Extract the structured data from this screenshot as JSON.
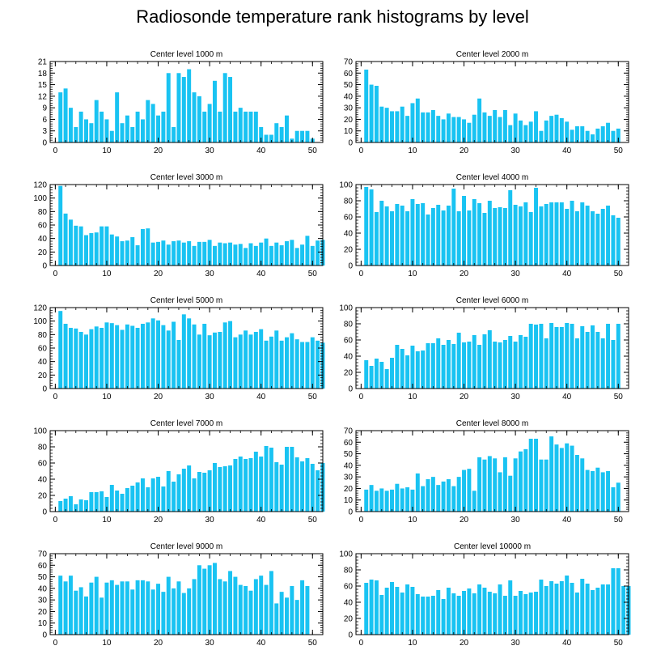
{
  "title": "Radiosonde temperature rank histograms by level",
  "colors": {
    "bar": "#19C3F2",
    "axis": "#000000",
    "background": "#ffffff"
  },
  "chart_data": [
    {
      "type": "bar",
      "title": "Center level 1000 m",
      "xlim": [
        -1,
        52
      ],
      "ylim": [
        0,
        21
      ],
      "xticks": [
        0,
        10,
        20,
        30,
        40,
        50
      ],
      "yticks": [
        0,
        3,
        6,
        9,
        12,
        15,
        18,
        21
      ],
      "values": [
        13,
        14,
        9,
        4,
        8,
        6,
        5,
        11,
        8,
        6,
        3,
        13,
        5,
        7,
        4,
        8,
        6,
        11,
        10,
        7,
        8,
        18,
        4,
        18,
        17,
        19,
        13,
        12,
        8,
        10,
        16,
        8,
        18,
        17,
        8,
        9,
        8,
        8,
        8,
        4,
        2,
        2,
        5,
        4,
        7,
        1,
        3,
        3,
        3,
        1
      ]
    },
    {
      "type": "bar",
      "title": "Center level 2000 m",
      "xlim": [
        -1,
        52
      ],
      "ylim": [
        0,
        70
      ],
      "xticks": [
        0,
        10,
        20,
        30,
        40,
        50
      ],
      "yticks": [
        0,
        10,
        20,
        30,
        40,
        50,
        60,
        70
      ],
      "values": [
        63,
        50,
        49,
        31,
        30,
        27,
        27,
        31,
        23,
        34,
        38,
        26,
        26,
        28,
        23,
        20,
        25,
        22,
        22,
        20,
        17,
        24,
        38,
        26,
        23,
        28,
        22,
        28,
        15,
        25,
        19,
        15,
        18,
        27,
        10,
        19,
        23,
        24,
        21,
        18,
        11,
        14,
        14,
        10,
        7,
        12,
        14,
        17,
        10,
        12
      ]
    },
    {
      "type": "bar",
      "title": "Center level 3000 m",
      "xlim": [
        -1,
        52
      ],
      "ylim": [
        0,
        120
      ],
      "xticks": [
        0,
        10,
        20,
        30,
        40,
        50
      ],
      "yticks": [
        0,
        20,
        40,
        60,
        80,
        100,
        120
      ],
      "values": [
        118,
        77,
        68,
        59,
        58,
        45,
        48,
        49,
        58,
        58,
        46,
        43,
        36,
        37,
        42,
        30,
        54,
        55,
        34,
        35,
        37,
        31,
        36,
        37,
        34,
        36,
        29,
        35,
        35,
        38,
        29,
        34,
        33,
        34,
        31,
        32,
        26,
        33,
        29,
        34,
        40,
        29,
        34,
        30,
        36,
        38,
        26,
        31,
        44,
        29,
        37,
        38
      ]
    },
    {
      "type": "bar",
      "title": "Center level 4000 m",
      "xlim": [
        -1,
        52
      ],
      "ylim": [
        0,
        100
      ],
      "xticks": [
        0,
        10,
        20,
        30,
        40,
        50
      ],
      "yticks": [
        0,
        20,
        40,
        60,
        80,
        100
      ],
      "values": [
        97,
        94,
        66,
        80,
        73,
        67,
        76,
        74,
        67,
        82,
        76,
        77,
        63,
        71,
        75,
        68,
        74,
        95,
        67,
        86,
        68,
        82,
        77,
        65,
        80,
        71,
        72,
        71,
        93,
        75,
        73,
        78,
        66,
        96,
        73,
        76,
        78,
        78,
        78,
        70,
        80,
        67,
        78,
        74,
        67,
        64,
        70,
        74,
        62,
        59
      ]
    },
    {
      "type": "bar",
      "title": "Center level 5000 m",
      "xlim": [
        -1,
        52
      ],
      "ylim": [
        0,
        120
      ],
      "xticks": [
        0,
        10,
        20,
        30,
        40,
        50
      ],
      "yticks": [
        0,
        20,
        40,
        60,
        80,
        100,
        120
      ],
      "values": [
        115,
        96,
        90,
        89,
        84,
        80,
        88,
        92,
        90,
        98,
        97,
        94,
        87,
        95,
        93,
        90,
        96,
        98,
        104,
        101,
        94,
        86,
        99,
        72,
        110,
        104,
        95,
        80,
        96,
        79,
        83,
        84,
        98,
        100,
        76,
        80,
        86,
        80,
        84,
        88,
        71,
        77,
        86,
        71,
        76,
        82,
        73,
        69,
        69,
        76,
        71,
        68
      ]
    },
    {
      "type": "bar",
      "title": "Center level 6000 m",
      "xlim": [
        -1,
        52
      ],
      "ylim": [
        0,
        100
      ],
      "xticks": [
        0,
        10,
        20,
        30,
        40,
        50
      ],
      "yticks": [
        0,
        20,
        40,
        60,
        80,
        100
      ],
      "values": [
        35,
        28,
        37,
        33,
        24,
        38,
        54,
        49,
        41,
        53,
        46,
        47,
        56,
        56,
        62,
        54,
        60,
        55,
        69,
        57,
        58,
        66,
        54,
        67,
        72,
        58,
        57,
        60,
        65,
        58,
        66,
        64,
        80,
        79,
        80,
        62,
        81,
        76,
        76,
        81,
        80,
        62,
        77,
        70,
        78,
        70,
        62,
        80,
        60,
        80
      ]
    },
    {
      "type": "bar",
      "title": "Center level 7000 m",
      "xlim": [
        -1,
        52
      ],
      "ylim": [
        0,
        100
      ],
      "xticks": [
        0,
        10,
        20,
        30,
        40,
        50
      ],
      "yticks": [
        0,
        20,
        40,
        60,
        80,
        100
      ],
      "values": [
        13,
        16,
        19,
        9,
        15,
        14,
        24,
        24,
        25,
        18,
        33,
        26,
        22,
        29,
        32,
        36,
        41,
        30,
        41,
        43,
        31,
        50,
        37,
        46,
        53,
        57,
        41,
        49,
        48,
        51,
        60,
        55,
        56,
        57,
        65,
        68,
        65,
        66,
        74,
        68,
        81,
        79,
        61,
        58,
        80,
        80,
        67,
        62,
        66,
        59,
        51,
        60
      ]
    },
    {
      "type": "bar",
      "title": "Center level 8000 m",
      "xlim": [
        -1,
        52
      ],
      "ylim": [
        0,
        70
      ],
      "xticks": [
        0,
        10,
        20,
        30,
        40,
        50
      ],
      "yticks": [
        0,
        10,
        20,
        30,
        40,
        50,
        60,
        70
      ],
      "values": [
        19,
        23,
        18,
        20,
        18,
        19,
        24,
        20,
        21,
        19,
        33,
        22,
        28,
        30,
        23,
        26,
        28,
        22,
        30,
        36,
        37,
        18,
        47,
        45,
        48,
        46,
        34,
        47,
        31,
        46,
        52,
        54,
        63,
        63,
        45,
        45,
        65,
        58,
        55,
        59,
        57,
        49,
        46,
        36,
        35,
        38,
        34,
        35,
        21,
        25
      ]
    },
    {
      "type": "bar",
      "title": "Center level 9000 m",
      "xlim": [
        -1,
        52
      ],
      "ylim": [
        0,
        70
      ],
      "xticks": [
        0,
        10,
        20,
        30,
        40,
        50
      ],
      "yticks": [
        0,
        10,
        20,
        30,
        40,
        50,
        60,
        70
      ],
      "values": [
        51,
        46,
        51,
        38,
        41,
        33,
        45,
        50,
        32,
        45,
        47,
        43,
        46,
        46,
        39,
        47,
        47,
        46,
        39,
        44,
        37,
        50,
        40,
        46,
        36,
        40,
        48,
        60,
        57,
        60,
        62,
        48,
        46,
        55,
        50,
        43,
        42,
        38,
        48,
        51,
        43,
        55,
        27,
        37,
        32,
        42,
        30,
        47,
        42
      ]
    },
    {
      "type": "bar",
      "title": "Center level 10000 m",
      "xlim": [
        -1,
        52
      ],
      "ylim": [
        0,
        100
      ],
      "xticks": [
        0,
        10,
        20,
        30,
        40,
        50
      ],
      "yticks": [
        0,
        20,
        40,
        60,
        80,
        100
      ],
      "values": [
        64,
        68,
        67,
        49,
        58,
        65,
        59,
        52,
        62,
        59,
        50,
        47,
        47,
        48,
        55,
        44,
        58,
        51,
        48,
        54,
        57,
        51,
        62,
        58,
        53,
        51,
        62,
        48,
        67,
        48,
        54,
        50,
        52,
        53,
        68,
        60,
        66,
        63,
        66,
        73,
        64,
        52,
        69,
        63,
        55,
        58,
        62,
        62,
        82,
        82,
        60,
        60
      ]
    }
  ]
}
